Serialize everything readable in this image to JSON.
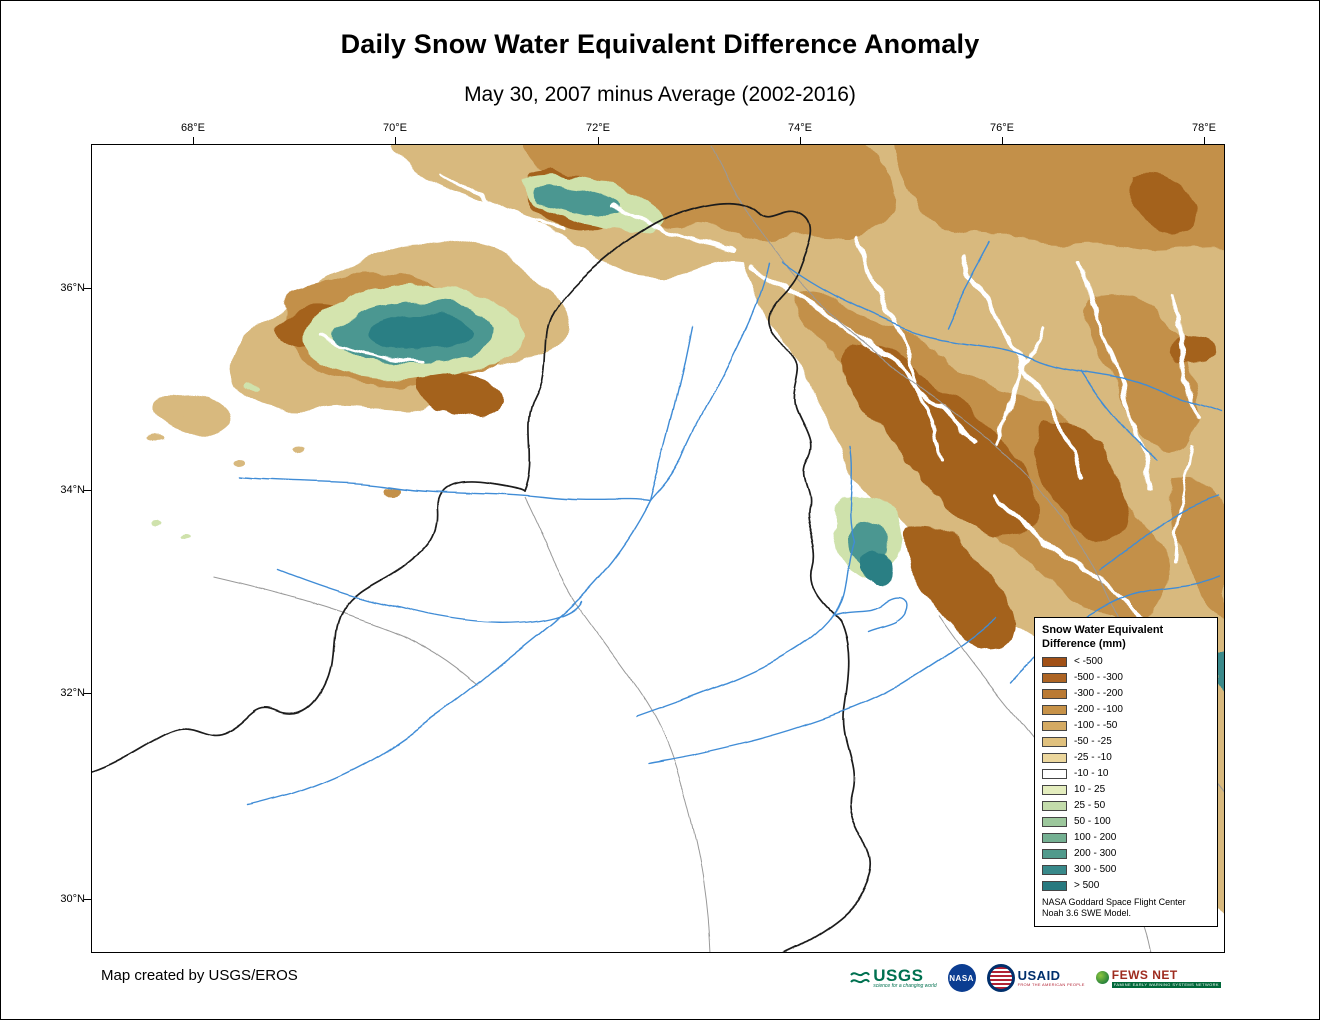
{
  "title": "Daily Snow Water Equivalent Difference Anomaly",
  "subtitle": "May 30, 2007 minus Average (2002-2016)",
  "map": {
    "x_ticks": [
      "68°E",
      "70°E",
      "72°E",
      "74°E",
      "76°E",
      "78°E"
    ],
    "y_ticks": [
      "36°N",
      "34°N",
      "32°N",
      "30°N"
    ]
  },
  "legend": {
    "title_line1": "Snow Water Equivalent",
    "title_line2": "Difference (mm)",
    "entries": [
      {
        "label": "< -500",
        "color": "#a15016"
      },
      {
        "label": "-500 - -300",
        "color": "#ad6423"
      },
      {
        "label": "-300 - -200",
        "color": "#ba7a33"
      },
      {
        "label": "-200 - -100",
        "color": "#c79248"
      },
      {
        "label": "-100 - -50",
        "color": "#d4aa62"
      },
      {
        "label": "-50 - -25",
        "color": "#e0c17e"
      },
      {
        "label": "-25 - -10",
        "color": "#ecd79d"
      },
      {
        "label": "-10 - 10",
        "color": "#ffffff"
      },
      {
        "label": "10 - 25",
        "color": "#e4edbe"
      },
      {
        "label": "25 - 50",
        "color": "#c3dcab"
      },
      {
        "label": "50 - 100",
        "color": "#9cc79c"
      },
      {
        "label": "100 - 200",
        "color": "#74b092"
      },
      {
        "label": "200 - 300",
        "color": "#519a8c"
      },
      {
        "label": "300 - 500",
        "color": "#38898a"
      },
      {
        "label": "> 500",
        "color": "#27797f"
      }
    ],
    "note_line1": "NASA Goddard Space Flight Center",
    "note_line2": "Noah 3.6 SWE Model."
  },
  "footer": {
    "credit": "Map created by USGS/EROS"
  },
  "logos": {
    "usgs": {
      "name": "USGS",
      "tagline": "science for a changing world"
    },
    "nasa": {
      "name": "NASA"
    },
    "usaid": {
      "name": "USAID",
      "tagline": "FROM THE AMERICAN PEOPLE"
    },
    "fewsnet": {
      "name": "FEWS NET",
      "tagline": "FAMINE EARLY WARNING SYSTEMS NETWORK"
    }
  },
  "colors": {
    "river-blue": "#3f8cd6",
    "boundary-black": "#1b1b1b",
    "admin-gray": "#999999"
  }
}
